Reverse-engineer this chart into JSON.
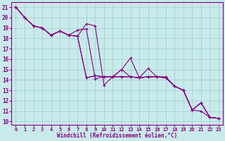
{
  "xlabel": "Windchill (Refroidissement éolien,°C)",
  "bg_color": "#c8eaea",
  "grid_color": "#a0cccc",
  "line_color": "#880088",
  "xlim": [
    -0.5,
    23.5
  ],
  "ylim": [
    9.7,
    21.5
  ],
  "xticks": [
    0,
    1,
    2,
    3,
    4,
    5,
    6,
    7,
    8,
    9,
    10,
    11,
    12,
    13,
    14,
    15,
    16,
    17,
    18,
    19,
    20,
    21,
    22,
    23
  ],
  "yticks": [
    10,
    11,
    12,
    13,
    14,
    15,
    16,
    17,
    18,
    19,
    20,
    21
  ],
  "lines": [
    [
      21.0,
      20.0,
      19.2,
      19.0,
      18.3,
      18.7,
      18.3,
      18.2,
      19.4,
      19.2,
      13.5,
      14.3,
      15.0,
      16.1,
      14.2,
      15.1,
      14.3,
      14.3,
      13.4,
      13.0,
      11.1,
      11.8,
      10.4,
      10.3
    ],
    [
      21.0,
      20.0,
      19.2,
      19.0,
      18.3,
      18.7,
      18.3,
      18.8,
      18.9,
      14.1,
      14.3,
      14.3,
      15.0,
      14.3,
      14.2,
      14.3,
      14.3,
      14.2,
      13.4,
      13.0,
      11.1,
      11.8,
      10.4,
      10.3
    ],
    [
      21.0,
      20.0,
      19.2,
      19.0,
      18.3,
      18.7,
      18.3,
      18.2,
      14.2,
      14.4,
      14.3,
      14.3,
      14.3,
      14.3,
      14.2,
      14.3,
      14.3,
      14.2,
      13.4,
      13.0,
      11.1,
      11.8,
      10.4,
      10.3
    ],
    [
      21.0,
      20.0,
      19.2,
      19.0,
      18.3,
      18.7,
      18.3,
      18.2,
      14.2,
      14.4,
      14.3,
      14.3,
      14.3,
      14.3,
      14.2,
      14.3,
      14.3,
      14.2,
      13.4,
      13.0,
      11.1,
      11.0,
      10.4,
      10.3
    ]
  ],
  "markersize": 2.5,
  "linewidth": 0.8
}
